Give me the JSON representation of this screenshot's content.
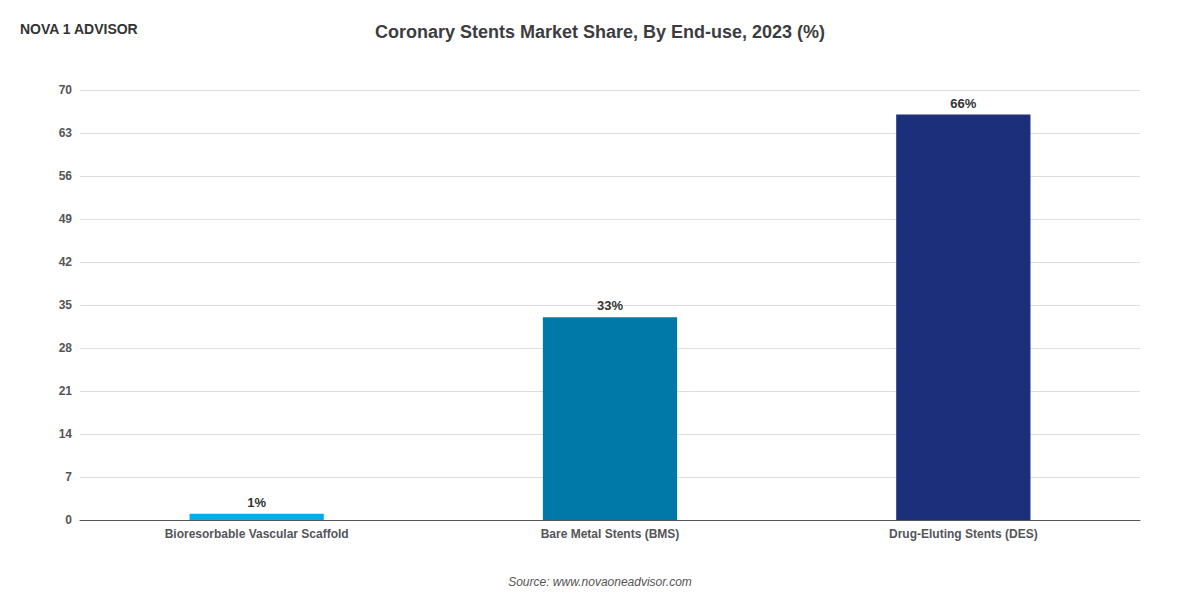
{
  "chart_data": {
    "type": "bar",
    "title": "Coronary Stents Market Share, By End-use, 2023 (%)",
    "categories": [
      "Bioresorbable Vascular Scaffold",
      "Bare Metal Stents (BMS)",
      "Drug-Eluting Stents (DES)"
    ],
    "values": [
      1,
      33,
      66
    ],
    "value_labels": [
      "1%",
      "33%",
      "66%"
    ],
    "data_labels": true,
    "colors": [
      "#00AEEF",
      "#0078A8",
      "#1B2F7B"
    ],
    "ylim": [
      0,
      70
    ],
    "yticks": [
      0,
      7,
      14,
      21,
      28,
      35,
      42,
      49,
      56,
      63,
      70
    ],
    "grid": true,
    "annotations": [
      "Source: www.novaoneadvisor.com",
      "NOVA",
      "1",
      "ADVISOR"
    ]
  }
}
